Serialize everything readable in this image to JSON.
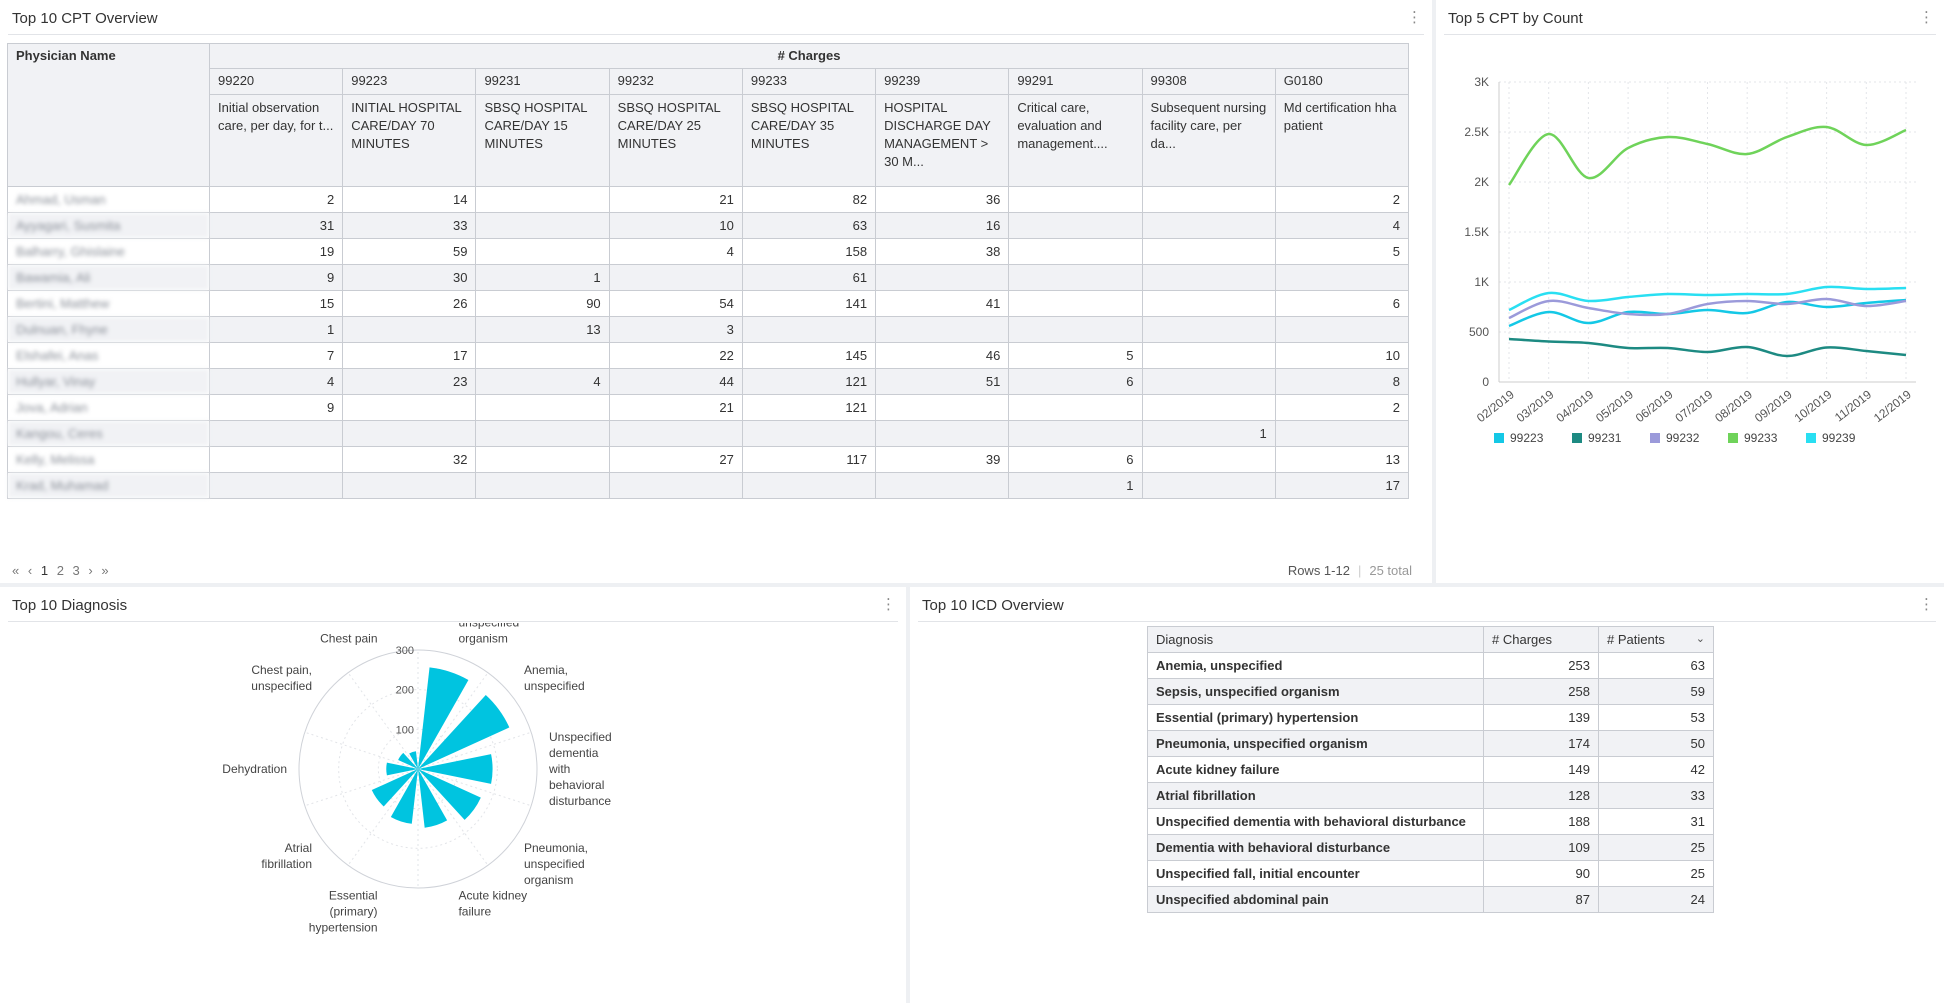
{
  "cpt_overview": {
    "title": "Top 10 CPT Overview",
    "physician_header": "Physician Name",
    "charges_header": "# Charges",
    "codes": [
      "99220",
      "99223",
      "99231",
      "99232",
      "99233",
      "99239",
      "99291",
      "99308",
      "G0180"
    ],
    "descriptions": [
      "Initial observation care, per day, for t...",
      "INITIAL HOSPITAL CARE/DAY 70 MINUTES",
      "SBSQ HOSPITAL CARE/DAY 15 MINUTES",
      "SBSQ HOSPITAL CARE/DAY 25 MINUTES",
      "SBSQ HOSPITAL CARE/DAY 35 MINUTES",
      "HOSPITAL DISCHARGE DAY MANAGEMENT > 30 M...",
      "Critical care, evaluation and management....",
      "Subsequent nursing facility care, per da...",
      "Md certification hha patient"
    ],
    "rows": [
      {
        "name": "Ahmad, Usman",
        "values": [
          "2",
          "14",
          "",
          "21",
          "82",
          "36",
          "",
          "",
          "2"
        ]
      },
      {
        "name": "Ayyagari, Susmita",
        "values": [
          "31",
          "33",
          "",
          "10",
          "63",
          "16",
          "",
          "",
          "4"
        ]
      },
      {
        "name": "Balharry, Ghislaine",
        "values": [
          "19",
          "59",
          "",
          "4",
          "158",
          "38",
          "",
          "",
          "5"
        ]
      },
      {
        "name": "Bawamia, Ali",
        "values": [
          "9",
          "30",
          "1",
          "",
          "61",
          "",
          "",
          "",
          ""
        ]
      },
      {
        "name": "Bertini, Matthew",
        "values": [
          "15",
          "26",
          "90",
          "54",
          "141",
          "41",
          "",
          "",
          "6"
        ]
      },
      {
        "name": "Dulnuan, Fhyne",
        "values": [
          "1",
          "",
          "13",
          "3",
          "",
          "",
          "",
          "",
          ""
        ]
      },
      {
        "name": "Elshafei, Anas",
        "values": [
          "7",
          "17",
          "",
          "22",
          "145",
          "46",
          "5",
          "",
          "10"
        ]
      },
      {
        "name": "Hullyar, Vinay",
        "values": [
          "4",
          "23",
          "4",
          "44",
          "121",
          "51",
          "6",
          "",
          "8"
        ]
      },
      {
        "name": "Jova, Adrian",
        "values": [
          "9",
          "",
          "",
          "21",
          "121",
          "",
          "",
          "",
          "2"
        ]
      },
      {
        "name": "Kangou, Ceres",
        "values": [
          "",
          "",
          "",
          "",
          "",
          "",
          "",
          "1",
          ""
        ]
      },
      {
        "name": "Kelly, Melissa",
        "values": [
          "",
          "32",
          "",
          "27",
          "117",
          "39",
          "6",
          "",
          "13"
        ]
      },
      {
        "name": "Krad, Muhamad",
        "values": [
          "",
          "",
          "",
          "",
          "",
          "",
          "1",
          "",
          "17"
        ]
      }
    ],
    "pager": {
      "first": "«",
      "prev": "‹",
      "pages": [
        "1",
        "2",
        "3"
      ],
      "next": "›",
      "last": "»"
    },
    "rows_label": "Rows 1-12",
    "total_label": "25 total"
  },
  "top5": {
    "title": "Top 5 CPT by Count",
    "colors": {
      "99223": "#14c8e6",
      "99231": "#1d8a82",
      "99232": "#9b9ada",
      "99233": "#6fd35a",
      "99239": "#29dff2"
    }
  },
  "diagnosis": {
    "title": "Top 10 Diagnosis"
  },
  "icd": {
    "title": "Top 10 ICD Overview",
    "headers": [
      "Diagnosis",
      "# Charges",
      "# Patients"
    ],
    "rows": [
      {
        "diagnosis": "Anemia, unspecified",
        "charges": "253",
        "patients": "63"
      },
      {
        "diagnosis": "Sepsis, unspecified organism",
        "charges": "258",
        "patients": "59"
      },
      {
        "diagnosis": "Essential (primary) hypertension",
        "charges": "139",
        "patients": "53"
      },
      {
        "diagnosis": "Pneumonia, unspecified organism",
        "charges": "174",
        "patients": "50"
      },
      {
        "diagnosis": "Acute kidney failure",
        "charges": "149",
        "patients": "42"
      },
      {
        "diagnosis": "Atrial fibrillation",
        "charges": "128",
        "patients": "33"
      },
      {
        "diagnosis": "Unspecified dementia with behavioral disturbance",
        "charges": "188",
        "patients": "31"
      },
      {
        "diagnosis": "Dementia with behavioral disturbance",
        "charges": "109",
        "patients": "25"
      },
      {
        "diagnosis": "Unspecified fall, initial encounter",
        "charges": "90",
        "patients": "25"
      },
      {
        "diagnosis": "Unspecified abdominal pain",
        "charges": "87",
        "patients": "24"
      }
    ]
  },
  "chart_data": [
    {
      "type": "line",
      "x": [
        "02/2019",
        "03/2019",
        "04/2019",
        "05/2019",
        "06/2019",
        "07/2019",
        "08/2019",
        "09/2019",
        "10/2019",
        "11/2019",
        "12/2019"
      ],
      "ylim": [
        0,
        3000
      ],
      "yticks": [
        "0",
        "500",
        "1K",
        "1.5K",
        "2K",
        "2.5K",
        "3K"
      ],
      "legend_position": "bottom",
      "series": [
        {
          "name": "99223",
          "values": [
            560,
            700,
            590,
            700,
            680,
            720,
            690,
            800,
            750,
            790,
            820
          ]
        },
        {
          "name": "99231",
          "values": [
            430,
            405,
            390,
            340,
            340,
            300,
            350,
            260,
            345,
            310,
            270
          ]
        },
        {
          "name": "99232",
          "values": [
            640,
            810,
            740,
            680,
            680,
            780,
            810,
            780,
            830,
            760,
            810
          ]
        },
        {
          "name": "99233",
          "values": [
            1970,
            2480,
            2040,
            2340,
            2450,
            2380,
            2280,
            2450,
            2550,
            2370,
            2520
          ]
        },
        {
          "name": "99239",
          "values": [
            720,
            890,
            810,
            850,
            880,
            870,
            880,
            880,
            950,
            930,
            940
          ]
        }
      ]
    },
    {
      "type": "bar",
      "subtype": "polar",
      "rticks": [
        "100",
        "200",
        "300"
      ],
      "rlim": [
        0,
        300
      ],
      "categories": [
        "Sepsis, unspecified organism",
        "Anemia, unspecified",
        "Unspecified dementia with behavioral disturbance",
        "Pneumonia, unspecified organism",
        "Acute kidney failure",
        "Essential (primary) hypertension",
        "Atrial fibrillation",
        "Dehydration",
        "Chest pain, unspecified",
        "Chest pain"
      ],
      "label_lines": [
        [
          "Sepsis,",
          "unspecified",
          "organism"
        ],
        [
          "Anemia,",
          "unspecified"
        ],
        [
          "Unspecified",
          "dementia",
          "with",
          "behavioral",
          "disturbance"
        ],
        [
          "Pneumonia,",
          "unspecified",
          "organism"
        ],
        [
          "Acute kidney",
          "failure"
        ],
        [
          "Essential",
          "(primary)",
          "hypertension"
        ],
        [
          "Atrial",
          "fibrillation"
        ],
        [
          "Dehydration"
        ],
        [
          "Chest pain,",
          "unspecified"
        ],
        [
          "Chest pain"
        ]
      ],
      "values": [
        258,
        253,
        188,
        174,
        149,
        139,
        128,
        80,
        55,
        45
      ],
      "color": "#00c4e0"
    }
  ]
}
